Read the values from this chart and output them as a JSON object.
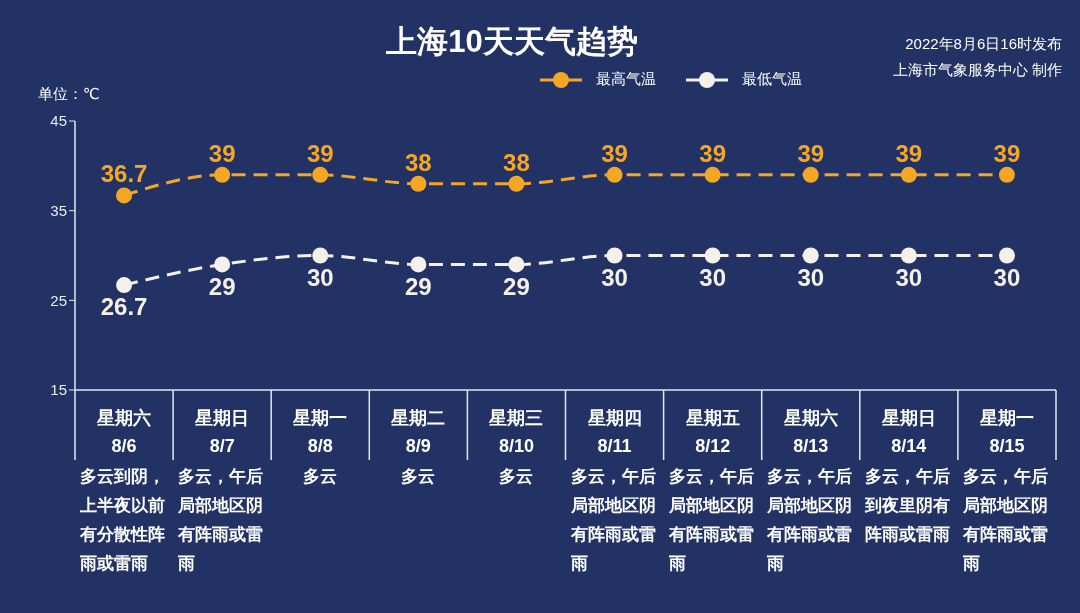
{
  "chart_data": {
    "type": "line",
    "title": "上海10天天气趋势",
    "ylabel": "单位：℃",
    "categories": [
      "星期六\n8/6",
      "星期日\n8/7",
      "星期一\n8/8",
      "星期二\n8/9",
      "星期三\n8/10",
      "星期四\n8/11",
      "星期五\n8/12",
      "星期六\n8/13",
      "星期日\n8/14",
      "星期一\n8/15"
    ],
    "series": [
      {
        "name": "最高气温",
        "color": "#f5a623",
        "values": [
          36.7,
          39,
          39,
          38,
          38,
          39,
          39,
          39,
          39,
          39
        ]
      },
      {
        "name": "最低气温",
        "color": "#f5f1ea",
        "values": [
          26.7,
          29,
          30,
          29,
          29,
          30,
          30,
          30,
          30,
          30
        ]
      }
    ],
    "ylim": [
      15,
      45
    ],
    "yticks": [
      15,
      25,
      35,
      45
    ],
    "grid": false,
    "legend": "top",
    "marker": "circle",
    "line_style": "dashed",
    "data_labels": true,
    "annotations": [
      "2022年8月6日16时发布",
      "上海市气象服务中心 制作",
      "多云到阴，上半夜以前有分散性阵雨或雷雨",
      "多云，午后局部地区阴有阵雨或雷雨",
      "多云",
      "多云",
      "多云",
      "多云，午后局部地区阴有阵雨或雷雨",
      "多云，午后局部地区阴有阵雨或雷雨",
      "多云，午后局部地区阴有阵雨或雷雨",
      "多云，午后到夜里阴有阵雨或雷雨",
      "多云，午后局部地区阴有阵雨或雷雨"
    ]
  }
}
